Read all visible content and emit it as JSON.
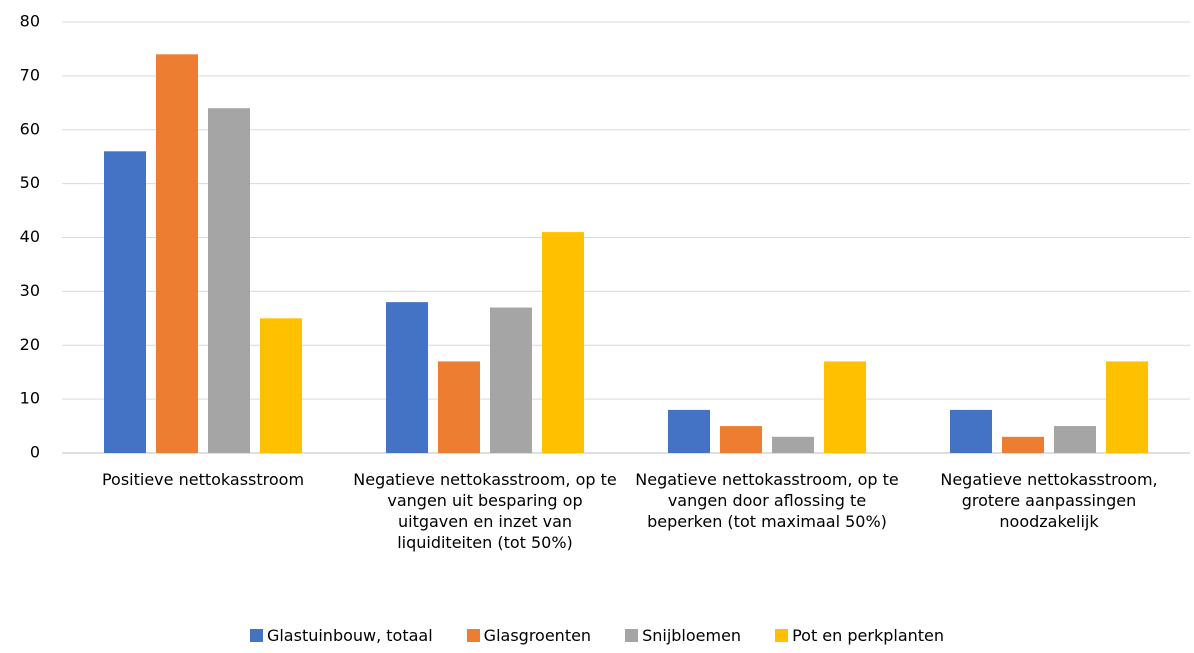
{
  "chart_data": {
    "type": "bar",
    "categories": [
      "Positieve nettokasstroom",
      "Negatieve nettokasstroom, op te vangen uit besparing op uitgaven en inzet van liquiditeiten (tot 50%)",
      "Negatieve nettokasstroom, op te vangen door aflossing te beperken (tot maximaal 50%)",
      "Negatieve nettokasstroom, grotere aanpassingen noodzakelijk"
    ],
    "series": [
      {
        "name": "Glastuinbouw, totaal",
        "color": "#4472c4",
        "values": [
          56,
          28,
          8,
          8
        ]
      },
      {
        "name": "Glasgroenten",
        "color": "#ed7d31",
        "values": [
          74,
          17,
          5,
          3
        ]
      },
      {
        "name": "Snijbloemen",
        "color": "#a5a5a5",
        "values": [
          64,
          27,
          3,
          5
        ]
      },
      {
        "name": "Pot en perkplanten",
        "color": "#ffc000",
        "values": [
          25,
          41,
          17,
          17
        ]
      }
    ],
    "ylim": [
      0,
      80
    ],
    "yticks": [
      0,
      10,
      20,
      30,
      40,
      50,
      60,
      70,
      80
    ],
    "grid": true,
    "legend": "bottom"
  }
}
